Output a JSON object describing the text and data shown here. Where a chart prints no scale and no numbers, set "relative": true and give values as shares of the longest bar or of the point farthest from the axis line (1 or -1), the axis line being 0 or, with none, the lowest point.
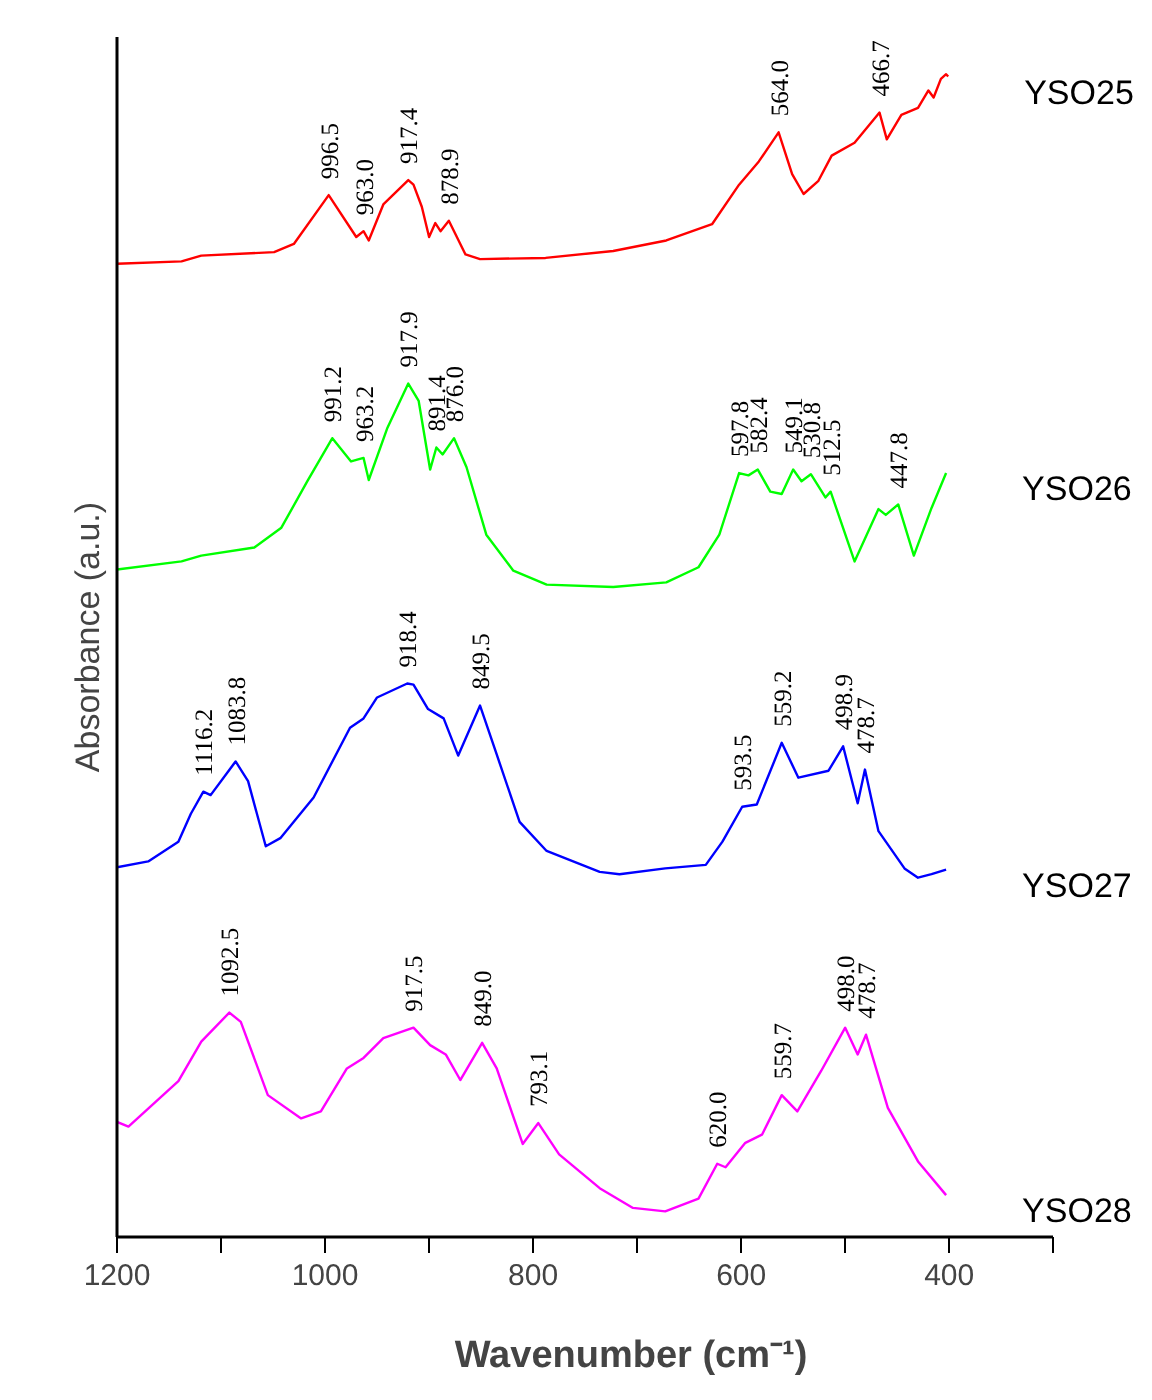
{
  "chart_data": {
    "type": "line",
    "relative": true,
    "xlabel": "Wavenumber (cm⁻¹)",
    "ylabel": "Absorbance (a.u.)",
    "xlim": [
      1200,
      300
    ],
    "xticks": [
      1200,
      {
        "value": 1100,
        "label": null
      },
      1000,
      {
        "value": 900,
        "label": null
      },
      800,
      {
        "value": 700,
        "label": null
      },
      600,
      {
        "value": 500,
        "label": null
      },
      400,
      {
        "value": 300,
        "label": null
      }
    ],
    "series": [
      {
        "name": "YSO25",
        "color": "#ff0000",
        "x": [
          1200,
          1138,
          1119,
          1049,
          1030,
          996.5,
          970,
          963,
          958,
          944,
          920,
          915,
          907,
          900,
          894,
          889,
          881,
          865,
          851,
          788,
          723,
          672,
          628,
          602,
          583,
          564,
          551,
          540,
          526,
          513,
          491,
          467,
          460,
          446,
          430,
          420,
          415,
          408,
          403,
          401
        ],
        "values": [
          0.837,
          0.839,
          0.844,
          0.847,
          0.854,
          0.896,
          0.86,
          0.865,
          0.857,
          0.888,
          0.909,
          0.905,
          0.886,
          0.86,
          0.872,
          0.865,
          0.874,
          0.845,
          0.841,
          0.842,
          0.848,
          0.857,
          0.871,
          0.905,
          0.925,
          0.95,
          0.914,
          0.897,
          0.908,
          0.93,
          0.941,
          0.967,
          0.944,
          0.965,
          0.971,
          0.986,
          0.98,
          0.996,
          1.0,
          0.998
        ]
      },
      {
        "name": "YSO26",
        "color": "#00ff00",
        "x": [
          1200,
          1138,
          1119,
          1068,
          1042,
          1017,
          993,
          975,
          963,
          958,
          940,
          920,
          910,
          899,
          893,
          887,
          876,
          864,
          845,
          819,
          787,
          723,
          672,
          641,
          621,
          602,
          593,
          584,
          572,
          561,
          550,
          542,
          533,
          519,
          514,
          491,
          468,
          461,
          449,
          434,
          417,
          403
        ],
        "values": [
          0.574,
          0.581,
          0.586,
          0.593,
          0.61,
          0.65,
          0.687,
          0.667,
          0.67,
          0.651,
          0.696,
          0.734,
          0.719,
          0.66,
          0.679,
          0.673,
          0.687,
          0.662,
          0.604,
          0.573,
          0.561,
          0.559,
          0.563,
          0.576,
          0.604,
          0.657,
          0.655,
          0.66,
          0.641,
          0.639,
          0.66,
          0.65,
          0.656,
          0.636,
          0.641,
          0.581,
          0.626,
          0.621,
          0.63,
          0.586,
          0.627,
          0.657
        ]
      },
      {
        "name": "YSO27",
        "color": "#0000ff",
        "x": [
          1200,
          1170,
          1141,
          1129,
          1117,
          1110,
          1086,
          1074,
          1057,
          1043,
          1011,
          976,
          963,
          950,
          921,
          915,
          901,
          886,
          872,
          851,
          835,
          813,
          787,
          736,
          717,
          673,
          634,
          618,
          599,
          585,
          561,
          545,
          516,
          502,
          488,
          481,
          468,
          443,
          430,
          417,
          403
        ],
        "values": [
          0.318,
          0.323,
          0.34,
          0.364,
          0.383,
          0.38,
          0.409,
          0.392,
          0.336,
          0.343,
          0.378,
          0.438,
          0.446,
          0.464,
          0.476,
          0.475,
          0.454,
          0.446,
          0.414,
          0.457,
          0.415,
          0.357,
          0.332,
          0.314,
          0.312,
          0.317,
          0.32,
          0.34,
          0.37,
          0.372,
          0.425,
          0.395,
          0.401,
          0.422,
          0.373,
          0.402,
          0.349,
          0.317,
          0.309,
          0.312,
          0.316
        ]
      },
      {
        "name": "YSO28",
        "color": "#ff00ff",
        "x": [
          1200,
          1189,
          1141,
          1119,
          1092,
          1081,
          1055,
          1023,
          1004,
          979,
          963,
          944,
          915,
          899,
          884,
          870,
          849,
          835,
          810,
          795,
          775,
          736,
          704,
          673,
          641,
          623,
          615,
          596,
          580,
          561,
          546,
          523,
          500,
          488,
          480,
          459,
          430,
          403
        ],
        "values": [
          0.099,
          0.095,
          0.134,
          0.168,
          0.193,
          0.185,
          0.122,
          0.102,
          0.108,
          0.145,
          0.154,
          0.171,
          0.18,
          0.165,
          0.157,
          0.135,
          0.167,
          0.145,
          0.08,
          0.098,
          0.071,
          0.042,
          0.025,
          0.022,
          0.033,
          0.063,
          0.06,
          0.081,
          0.088,
          0.122,
          0.108,
          0.143,
          0.18,
          0.157,
          0.174,
          0.111,
          0.065,
          0.036
        ]
      }
    ],
    "annotations": [
      {
        "text": "996.5",
        "x": 996.5,
        "y": 0.896
      },
      {
        "text": "963.0",
        "x": 963,
        "y": 0.865
      },
      {
        "text": "917.4",
        "x": 920,
        "y": 0.909
      },
      {
        "text": "878.9",
        "x": 881,
        "y": 0.874
      },
      {
        "text": "564.0",
        "x": 564,
        "y": 0.95
      },
      {
        "text": "466.7",
        "x": 467,
        "y": 0.967
      },
      {
        "text": "991.2",
        "x": 993,
        "y": 0.687
      },
      {
        "text": "963.2",
        "x": 963,
        "y": 0.67
      },
      {
        "text": "917.9",
        "x": 920,
        "y": 0.734
      },
      {
        "text": "891.4",
        "x": 893,
        "y": 0.679
      },
      {
        "text": "876.0",
        "x": 876,
        "y": 0.687
      },
      {
        "text": "597.8",
        "x": 602,
        "y": 0.657
      },
      {
        "text": "582.4",
        "x": 584,
        "y": 0.66
      },
      {
        "text": "549.1",
        "x": 550,
        "y": 0.66
      },
      {
        "text": "530.8",
        "x": 533,
        "y": 0.656
      },
      {
        "text": "512.5",
        "x": 514,
        "y": 0.641
      },
      {
        "text": "447.8",
        "x": 449,
        "y": 0.63
      },
      {
        "text": "1116.2",
        "x": 1117,
        "y": 0.383
      },
      {
        "text": "1083.8",
        "x": 1086,
        "y": 0.409
      },
      {
        "text": "918.4",
        "x": 921,
        "y": 0.476
      },
      {
        "text": "849.5",
        "x": 851,
        "y": 0.457
      },
      {
        "text": "593.5",
        "x": 599,
        "y": 0.37
      },
      {
        "text": "559.2",
        "x": 561,
        "y": 0.425
      },
      {
        "text": "498.9",
        "x": 502,
        "y": 0.422
      },
      {
        "text": "478.7",
        "x": 481,
        "y": 0.402
      },
      {
        "text": "1092.5",
        "x": 1092,
        "y": 0.193
      },
      {
        "text": "917.5",
        "x": 915,
        "y": 0.18
      },
      {
        "text": "849.0",
        "x": 849,
        "y": 0.167
      },
      {
        "text": "793.1",
        "x": 795,
        "y": 0.098
      },
      {
        "text": "620.0",
        "x": 623,
        "y": 0.063
      },
      {
        "text": "559.7",
        "x": 561,
        "y": 0.122
      },
      {
        "text": "498.0",
        "x": 500,
        "y": 0.18
      },
      {
        "text": "478.7",
        "x": 480,
        "y": 0.174
      }
    ]
  }
}
